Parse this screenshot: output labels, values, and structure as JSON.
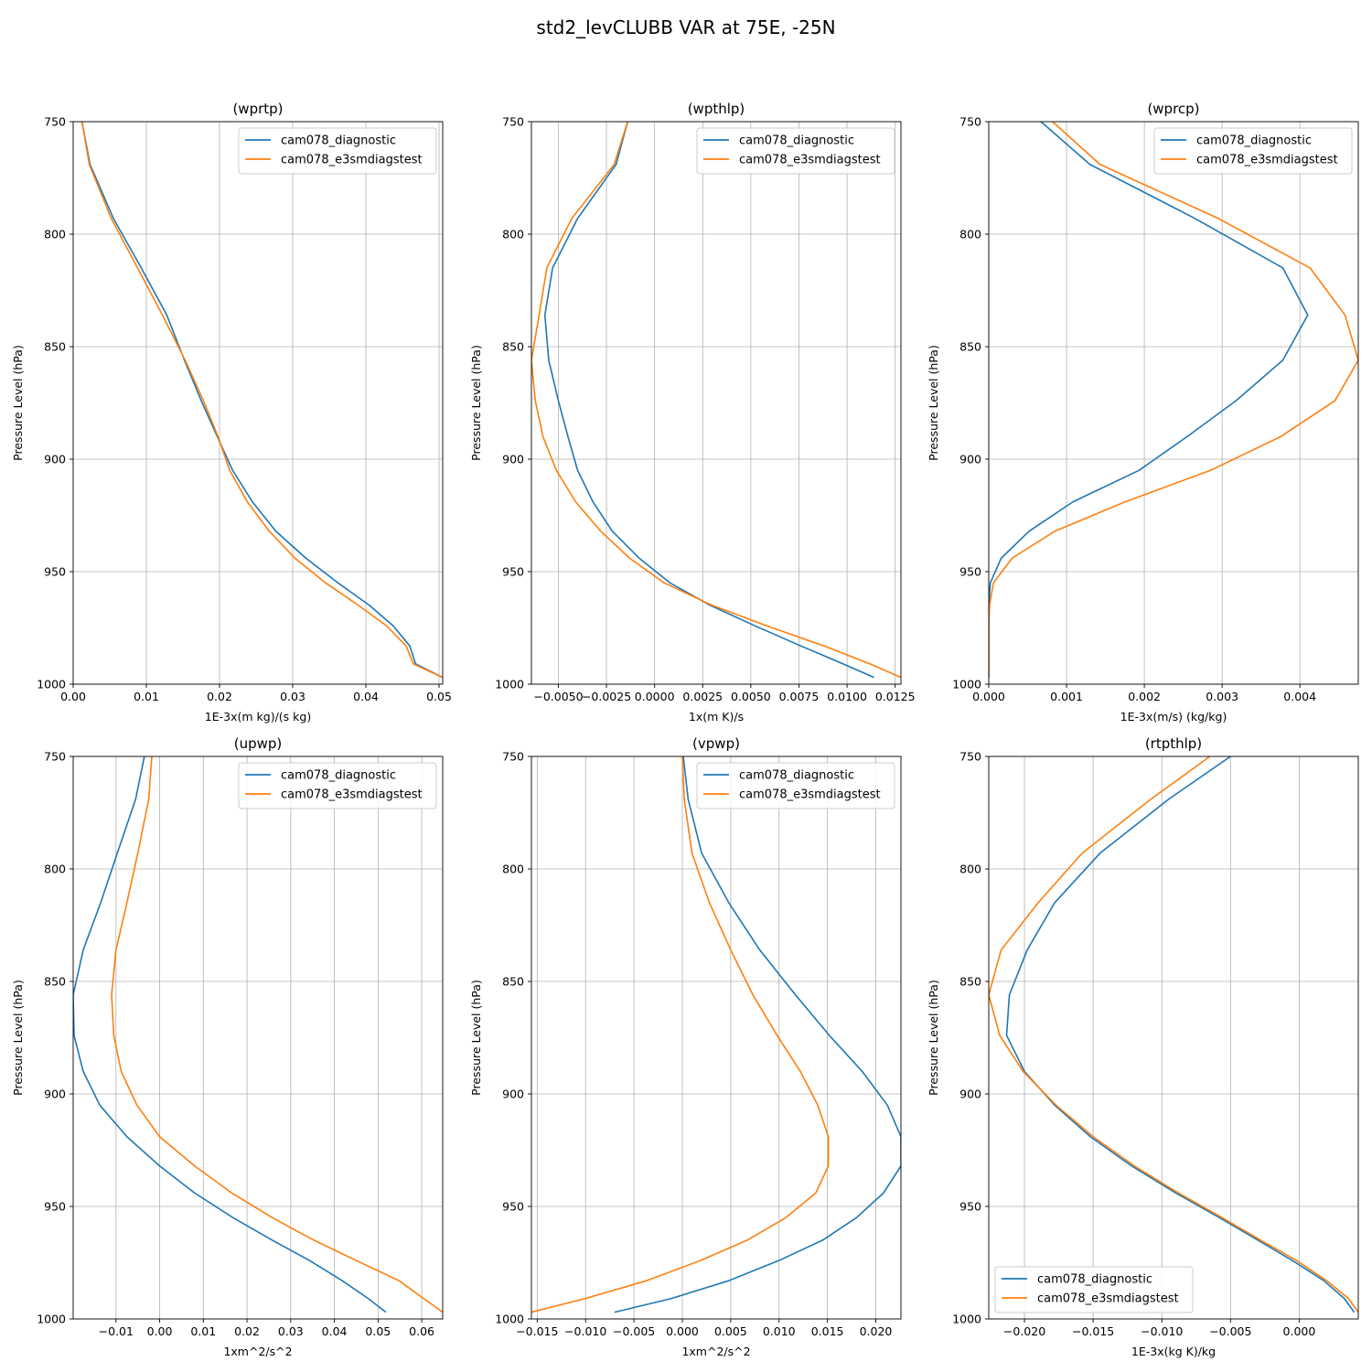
{
  "suptitle": "std2_levCLUBB VAR at 75E, -25N",
  "colors": {
    "cam078_diagnostic": "#1f77b4",
    "cam078_e3smdiagstest": "#ff7f0e",
    "grid": "#b0b0b0"
  },
  "chart_data": [
    {
      "type": "line",
      "title": "(wprtp)",
      "xlabel": "1E-3x(m kg)/(s kg)",
      "ylabel": "Pressure Level (hPa)",
      "xlim": [
        0.0,
        0.0505
      ],
      "ylim": [
        1000,
        750
      ],
      "xticks": [
        0.0,
        0.01,
        0.02,
        0.03,
        0.04,
        0.05
      ],
      "xtick_labels": [
        "0.00",
        "0.01",
        "0.02",
        "0.03",
        "0.04",
        "0.05"
      ],
      "yticks": [
        750,
        800,
        850,
        900,
        950,
        1000
      ],
      "ytick_labels": [
        "750",
        "800",
        "850",
        "900",
        "950",
        "1000"
      ],
      "grid": true,
      "legend": "upper right",
      "series": [
        {
          "name": "cam078_diagnostic",
          "levels": [
            750,
            769,
            793,
            815,
            836,
            856,
            874,
            890,
            905,
            919,
            932,
            944,
            955,
            965,
            974,
            983,
            991,
            997
          ],
          "x": [
            0.0012,
            0.0023,
            0.0055,
            0.0093,
            0.0128,
            0.0152,
            0.0175,
            0.0197,
            0.0218,
            0.0245,
            0.0277,
            0.0318,
            0.0362,
            0.0405,
            0.0437,
            0.046,
            0.0468,
            0.0505
          ]
        },
        {
          "name": "cam078_e3smdiagstest",
          "levels": [
            750,
            769,
            793,
            815,
            836,
            856,
            874,
            890,
            905,
            919,
            932,
            944,
            955,
            965,
            974,
            983,
            991,
            997
          ],
          "x": [
            0.0012,
            0.0022,
            0.0052,
            0.0088,
            0.0122,
            0.0153,
            0.0178,
            0.0198,
            0.0214,
            0.0238,
            0.0268,
            0.0303,
            0.0345,
            0.039,
            0.0428,
            0.0455,
            0.0465,
            0.0505
          ]
        }
      ]
    },
    {
      "type": "line",
      "title": "(wpthlp)",
      "xlabel": "1x(m K)/s",
      "ylabel": "Pressure Level (hPa)",
      "xlim": [
        -0.0064,
        0.0128
      ],
      "ylim": [
        1000,
        750
      ],
      "xticks": [
        -0.005,
        -0.0025,
        0.0,
        0.0025,
        0.005,
        0.0075,
        0.01,
        0.0125
      ],
      "xtick_labels": [
        "−0.0050",
        "−0.0025",
        "0.0000",
        "0.0025",
        "0.0050",
        "0.0075",
        "0.0100",
        "0.0125"
      ],
      "yticks": [
        750,
        800,
        850,
        900,
        950,
        1000
      ],
      "ytick_labels": [
        "750",
        "800",
        "850",
        "900",
        "950",
        "1000"
      ],
      "grid": true,
      "legend": "upper right",
      "series": [
        {
          "name": "cam078_diagnostic",
          "levels": [
            750,
            769,
            793,
            815,
            836,
            856,
            874,
            890,
            905,
            919,
            932,
            944,
            955,
            965,
            974,
            983,
            991,
            997
          ],
          "x": [
            -0.0014,
            -0.002,
            -0.004,
            -0.0053,
            -0.0057,
            -0.0055,
            -0.005,
            -0.0045,
            -0.004,
            -0.0032,
            -0.0022,
            -0.0008,
            0.0008,
            0.0029,
            0.0052,
            0.0076,
            0.0098,
            0.0114
          ]
        },
        {
          "name": "cam078_e3smdiagstest",
          "levels": [
            750,
            769,
            793,
            815,
            836,
            856,
            874,
            890,
            905,
            919,
            932,
            944,
            955,
            965,
            974,
            983,
            991,
            997
          ],
          "x": [
            -0.0014,
            -0.0021,
            -0.0043,
            -0.0056,
            -0.006,
            -0.0064,
            -0.0062,
            -0.0058,
            -0.0051,
            -0.0041,
            -0.0028,
            -0.0013,
            0.0005,
            0.003,
            0.0058,
            0.0088,
            0.0112,
            0.0128
          ]
        }
      ]
    },
    {
      "type": "line",
      "title": "(wprcp)",
      "xlabel": "1E-3x(m/s) (kg/kg)",
      "ylabel": "Pressure Level (hPa)",
      "xlim": [
        0.0,
        0.00475
      ],
      "ylim": [
        1000,
        750
      ],
      "xticks": [
        0.0,
        0.001,
        0.002,
        0.003,
        0.004
      ],
      "xtick_labels": [
        "0.000",
        "0.001",
        "0.002",
        "0.003",
        "0.004"
      ],
      "yticks": [
        750,
        800,
        850,
        900,
        950,
        1000
      ],
      "ytick_labels": [
        "750",
        "800",
        "850",
        "900",
        "950",
        "1000"
      ],
      "grid": true,
      "legend": "upper right",
      "series": [
        {
          "name": "cam078_diagnostic",
          "levels": [
            750,
            769,
            793,
            815,
            836,
            856,
            874,
            890,
            905,
            919,
            932,
            944,
            955,
            965,
            974,
            983,
            991,
            997
          ],
          "x": [
            0.00067,
            0.0013,
            0.00265,
            0.00378,
            0.0041,
            0.00378,
            0.00318,
            0.00255,
            0.00193,
            0.00108,
            0.00052,
            0.00016,
            2e-05,
            0.0,
            0.0,
            0.0,
            0.0,
            0.0
          ]
        },
        {
          "name": "cam078_e3smdiagstest",
          "levels": [
            750,
            769,
            793,
            815,
            836,
            856,
            874,
            890,
            905,
            919,
            932,
            944,
            955,
            965,
            974,
            983,
            991,
            997
          ],
          "x": [
            0.00082,
            0.00143,
            0.00295,
            0.00413,
            0.00458,
            0.00475,
            0.00445,
            0.00375,
            0.00285,
            0.00175,
            0.00085,
            0.0003,
            6e-05,
            1e-05,
            0.0,
            0.0,
            0.0,
            0.0
          ]
        }
      ]
    },
    {
      "type": "line",
      "title": "(upwp)",
      "xlabel": "1xm^2/s^2",
      "ylabel": "Pressure Level (hPa)",
      "xlim": [
        -0.0198,
        0.0648
      ],
      "ylim": [
        1000,
        750
      ],
      "xticks": [
        -0.01,
        0.0,
        0.01,
        0.02,
        0.03,
        0.04,
        0.05,
        0.06
      ],
      "xtick_labels": [
        "−0.01",
        "0.00",
        "0.01",
        "0.02",
        "0.03",
        "0.04",
        "0.05",
        "0.06"
      ],
      "yticks": [
        750,
        800,
        850,
        900,
        950,
        1000
      ],
      "ytick_labels": [
        "750",
        "800",
        "850",
        "900",
        "950",
        "1000"
      ],
      "grid": true,
      "legend": "upper right",
      "series": [
        {
          "name": "cam078_diagnostic",
          "levels": [
            750,
            769,
            793,
            815,
            836,
            856,
            874,
            890,
            905,
            919,
            932,
            944,
            955,
            965,
            974,
            983,
            991,
            997
          ],
          "x": [
            -0.0035,
            -0.0055,
            -0.0097,
            -0.0135,
            -0.0175,
            -0.0198,
            -0.0196,
            -0.0175,
            -0.0137,
            -0.0075,
            0.0,
            0.008,
            0.0168,
            0.0258,
            0.0343,
            0.0418,
            0.0478,
            0.0518
          ]
        },
        {
          "name": "cam078_e3smdiagstest",
          "levels": [
            750,
            769,
            793,
            815,
            836,
            856,
            874,
            890,
            905,
            919,
            932,
            944,
            955,
            965,
            974,
            983,
            991,
            997
          ],
          "x": [
            -0.0018,
            -0.0025,
            -0.005,
            -0.0075,
            -0.01,
            -0.011,
            -0.0105,
            -0.0088,
            -0.0052,
            0.0,
            0.008,
            0.0165,
            0.0258,
            0.0353,
            0.045,
            0.0548,
            0.0605,
            0.0648
          ]
        }
      ]
    },
    {
      "type": "line",
      "title": "(vpwp)",
      "xlabel": "1xm^2/s^2",
      "ylabel": "Pressure Level (hPa)",
      "xlim": [
        -0.0156,
        0.0226
      ],
      "ylim": [
        1000,
        750
      ],
      "xticks": [
        -0.015,
        -0.01,
        -0.005,
        0.0,
        0.005,
        0.01,
        0.015,
        0.02
      ],
      "xtick_labels": [
        "−0.015",
        "−0.010",
        "−0.005",
        "0.000",
        "0.005",
        "0.010",
        "0.015",
        "0.020"
      ],
      "yticks": [
        750,
        800,
        850,
        900,
        950,
        1000
      ],
      "ytick_labels": [
        "750",
        "800",
        "850",
        "900",
        "950",
        "1000"
      ],
      "grid": true,
      "legend": "upper right",
      "series": [
        {
          "name": "cam078_diagnostic",
          "levels": [
            750,
            769,
            793,
            815,
            836,
            856,
            874,
            890,
            905,
            919,
            932,
            944,
            955,
            965,
            974,
            983,
            991,
            997
          ],
          "x": [
            0.0001,
            0.0006,
            0.002,
            0.0048,
            0.008,
            0.0117,
            0.0152,
            0.0186,
            0.0212,
            0.0226,
            0.0226,
            0.0208,
            0.018,
            0.0145,
            0.01,
            0.0048,
            -0.0012,
            -0.007
          ]
        },
        {
          "name": "cam078_e3smdiagstest",
          "levels": [
            750,
            769,
            793,
            815,
            836,
            856,
            874,
            890,
            905,
            919,
            932,
            944,
            955,
            965,
            974,
            983,
            991,
            997
          ],
          "x": [
            0.0,
            0.0002,
            0.001,
            0.0028,
            0.005,
            0.0073,
            0.0098,
            0.0122,
            0.014,
            0.0151,
            0.0151,
            0.0138,
            0.0107,
            0.0067,
            0.0019,
            -0.0037,
            -0.0101,
            -0.0156
          ]
        }
      ]
    },
    {
      "type": "line",
      "title": "(rtpthlp)",
      "xlabel": "1E-3x(kg K)/kg",
      "ylabel": "Pressure Level (hPa)",
      "xlim": [
        -0.0226,
        0.0043
      ],
      "ylim": [
        1000,
        750
      ],
      "xticks": [
        -0.02,
        -0.015,
        -0.01,
        -0.005,
        0.0
      ],
      "xtick_labels": [
        "−0.020",
        "−0.015",
        "−0.010",
        "−0.005",
        "0.000"
      ],
      "yticks": [
        750,
        800,
        850,
        900,
        950,
        1000
      ],
      "ytick_labels": [
        "750",
        "800",
        "850",
        "900",
        "950",
        "1000"
      ],
      "grid": true,
      "legend": "lower left",
      "series": [
        {
          "name": "cam078_diagnostic",
          "levels": [
            750,
            769,
            793,
            815,
            836,
            856,
            874,
            890,
            905,
            919,
            932,
            944,
            955,
            965,
            974,
            983,
            991,
            997
          ],
          "x": [
            -0.005,
            -0.0095,
            -0.0145,
            -0.0178,
            -0.0198,
            -0.0211,
            -0.0213,
            -0.02,
            -0.0178,
            -0.0152,
            -0.0122,
            -0.009,
            -0.0058,
            -0.003,
            -0.0005,
            0.0018,
            0.0033,
            0.004
          ]
        },
        {
          "name": "cam078_e3smdiagstest",
          "levels": [
            750,
            769,
            793,
            815,
            836,
            856,
            874,
            890,
            905,
            919,
            932,
            944,
            955,
            965,
            974,
            983,
            991,
            997
          ],
          "x": [
            -0.0065,
            -0.0108,
            -0.0158,
            -0.019,
            -0.0217,
            -0.0226,
            -0.0218,
            -0.0201,
            -0.0177,
            -0.015,
            -0.012,
            -0.0088,
            -0.0056,
            -0.0028,
            -0.0002,
            0.002,
            0.0036,
            0.0043
          ]
        }
      ]
    }
  ]
}
